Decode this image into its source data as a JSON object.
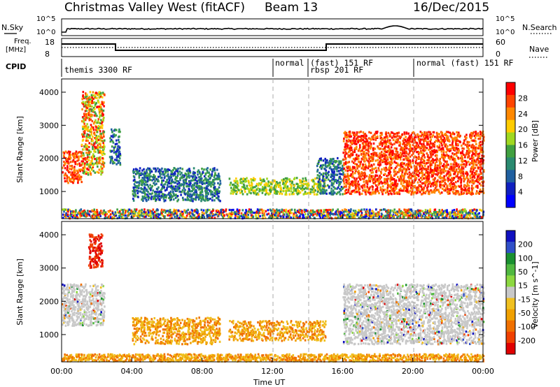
{
  "header": {
    "station": "Christmas Valley West (fitACF)",
    "beam": "Beam 13",
    "date": "16/Dec/2015"
  },
  "noise_panel": {
    "left_label": "N.Sky",
    "right_label": "N.Search",
    "y_ticks": [
      "10^5",
      "10^0"
    ]
  },
  "freq_panel": {
    "left_label_1": "Freq.",
    "left_label_2": "[MHz]",
    "left_ticks": [
      "18",
      "8"
    ],
    "right_label": "Nave",
    "right_ticks": [
      "60",
      "0"
    ]
  },
  "cpid_panel": {
    "label": "CPID",
    "modes": [
      {
        "name": "themis 3300 RF",
        "start": 0.0
      },
      {
        "name": "normal",
        "start": 12.0
      },
      {
        "name": "(fast) 151 RF",
        "start": 14.0
      },
      {
        "name": "rbsp 201 RF",
        "start": 14.0
      },
      {
        "name": "normal (fast) 151 RF",
        "start": 20.0
      }
    ]
  },
  "time_axis": {
    "label": "Time UT",
    "ticks": [
      "00:00",
      "04:00",
      "08:00",
      "12:00",
      "16:00",
      "20:00",
      "00:00"
    ]
  },
  "colorbars": {
    "power": {
      "label": "Power [dB]",
      "ticks": [
        "28",
        "24",
        "20",
        "16",
        "12",
        "8",
        "4"
      ],
      "colors": [
        "#ff0000",
        "#ff4400",
        "#ff8800",
        "#ffcc00",
        "#a0d820",
        "#40a040",
        "#2a8a70",
        "#2060a0",
        "#1020c0",
        "#0000ff"
      ]
    },
    "velocity": {
      "label": "Velocity [m s^-1]",
      "ticks": [
        "200",
        "100",
        "50",
        "15",
        "-15",
        "-50",
        "-100",
        "-200"
      ],
      "colors": [
        "#1010c0",
        "#3050c8",
        "#1a9030",
        "#50b840",
        "#8cd840",
        "#c8c8c8",
        "#f0c020",
        "#f0a000",
        "#f07000",
        "#f04000",
        "#e00000"
      ]
    }
  },
  "chart_data": [
    {
      "type": "heatmap",
      "panel": "power",
      "ylabel": "Slant Range [km]",
      "xlabel": "Time UT",
      "xlim": [
        0,
        24
      ],
      "ylim": [
        180,
        4400
      ],
      "y_ticks": [
        1000,
        2000,
        3000,
        4000
      ],
      "colorbar_range_db": [
        0,
        30
      ],
      "regions": [
        {
          "t0": 0.0,
          "t1": 1.1,
          "r0": 1250,
          "r1": 2200,
          "level": "high"
        },
        {
          "t0": 1.1,
          "t1": 2.4,
          "r0": 1500,
          "r1": 4000,
          "level": "mixed"
        },
        {
          "t0": 2.7,
          "t1": 3.3,
          "r0": 1800,
          "r1": 2900,
          "level": "low"
        },
        {
          "t0": 4.0,
          "t1": 9.0,
          "r0": 700,
          "r1": 1700,
          "level": "low"
        },
        {
          "t0": 9.5,
          "t1": 15.0,
          "r0": 900,
          "r1": 1400,
          "level": "mid"
        },
        {
          "t0": 14.5,
          "t1": 16.0,
          "r0": 900,
          "r1": 2000,
          "level": "low"
        },
        {
          "t0": 16.0,
          "t1": 24.0,
          "r0": 900,
          "r1": 2800,
          "level": "high"
        },
        {
          "t0": 0.0,
          "t1": 24.0,
          "r0": 180,
          "r1": 450,
          "level": "ground"
        }
      ]
    },
    {
      "type": "heatmap",
      "panel": "velocity",
      "ylabel": "Slant Range [km]",
      "xlabel": "Time UT",
      "xlim": [
        0,
        24
      ],
      "ylim": [
        180,
        4400
      ],
      "y_ticks": [
        1000,
        2000,
        3000,
        4000
      ],
      "colorbar_range_ms": [
        -250,
        250
      ],
      "regions": [
        {
          "t0": 0.0,
          "t1": 2.4,
          "r0": 1250,
          "r1": 2500,
          "velocity": "near-zero"
        },
        {
          "t0": 1.5,
          "t1": 2.3,
          "r0": 3000,
          "r1": 4000,
          "velocity": "negative-high"
        },
        {
          "t0": 4.0,
          "t1": 9.0,
          "r0": 700,
          "r1": 1500,
          "velocity": "negative"
        },
        {
          "t0": 9.5,
          "t1": 15.0,
          "r0": 800,
          "r1": 1400,
          "velocity": "negative"
        },
        {
          "t0": 16.0,
          "t1": 24.0,
          "r0": 700,
          "r1": 2500,
          "velocity": "near-zero"
        },
        {
          "t0": 0.0,
          "t1": 24.0,
          "r0": 180,
          "r1": 400,
          "velocity": "negative"
        }
      ]
    }
  ]
}
